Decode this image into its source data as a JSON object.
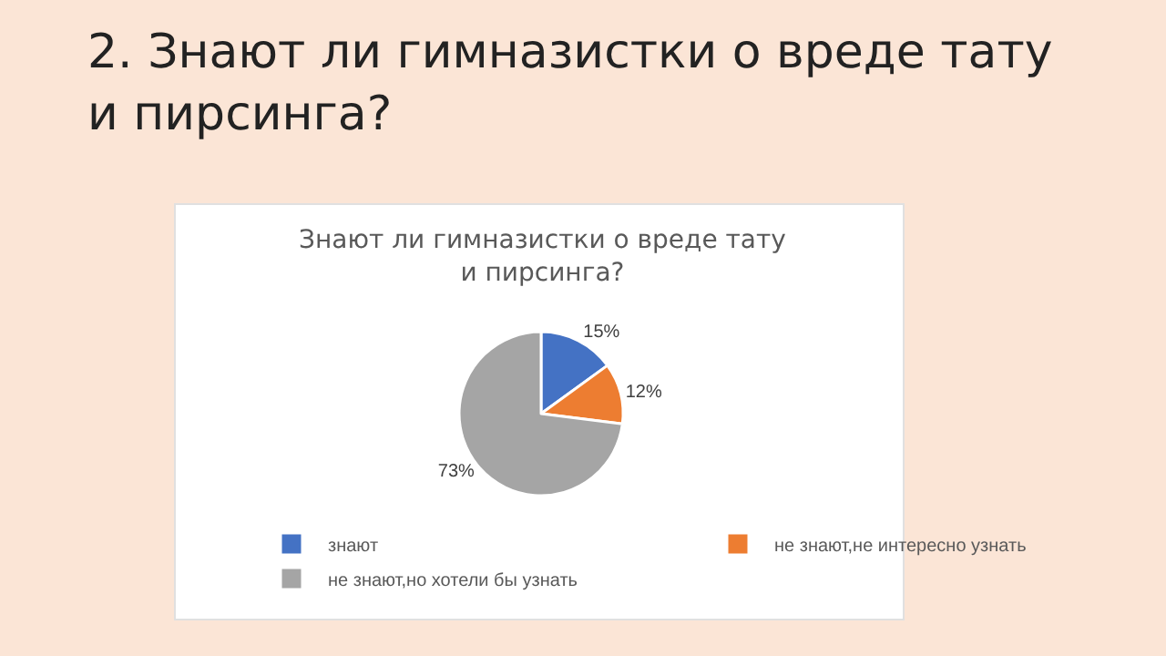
{
  "chart_data": {
    "type": "pie",
    "title": "2. Знают ли гимназистки о вреде тату и пирсинга?",
    "subtitle": "Знают ли гимназистки о вреде тату и пирсинга?",
    "categories": [
      "знают",
      "не знают,не интересно узнать",
      "не знают,но хотели бы узнать"
    ],
    "values": [
      15,
      12,
      73
    ],
    "colors": [
      "#4472c4",
      "#ed7d31",
      "#a5a5a5"
    ],
    "value_labels": [
      "15%",
      "12%",
      "73%"
    ],
    "legend": "bottom"
  }
}
